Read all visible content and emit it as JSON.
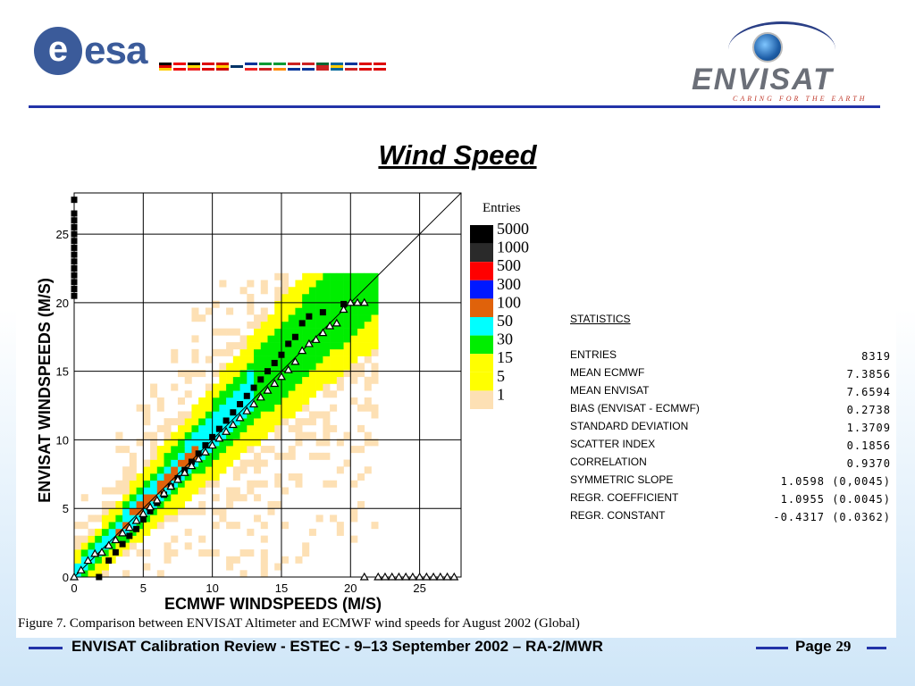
{
  "header": {
    "esa_logo_letter": "e",
    "esa_logo_text": "esa",
    "flags": [
      "de",
      "at",
      "be",
      "dk",
      "es",
      "fi",
      "fr",
      "it",
      "ie",
      "nl",
      "no",
      "pt",
      "se",
      "gb",
      "ch",
      "ca"
    ],
    "envisat_logo_text": "ENVISAT",
    "envisat_tagline": "CARING FOR THE EARTH"
  },
  "page_title": "Wind Speed",
  "figure_caption": "Figure 7. Comparison between ENVISAT Altimeter and ECMWF wind speeds for August 2002 (Global)",
  "chart_data": {
    "type": "heatmap",
    "xlabel": "ECMWF  WINDSPEEDS (M/S)",
    "ylabel": "ENVISAT  WINDSPEEDS (M/S)",
    "xlim": [
      0,
      28
    ],
    "ylim": [
      0,
      28
    ],
    "xticks": [
      "0",
      "5",
      "10",
      "15",
      "20",
      "25"
    ],
    "yticks": [
      "0",
      "5",
      "10",
      "15",
      "20",
      "25"
    ],
    "grid": true,
    "diagonal_line": "y = x",
    "legend_title": "Entries",
    "legend": [
      {
        "label": "5000",
        "color": "#000000"
      },
      {
        "label": "1000",
        "color": "#2a2a2a"
      },
      {
        "label": "500",
        "color": "#ff0000"
      },
      {
        "label": "300",
        "color": "#0018ff"
      },
      {
        "label": "100",
        "color": "#e0620a"
      },
      {
        "label": "50",
        "color": "#00ffff"
      },
      {
        "label": "30",
        "color": "#00ee00"
      },
      {
        "label": "15",
        "color": "#ffff00"
      },
      {
        "label": "5",
        "color": "#ffff00"
      },
      {
        "label": "1",
        "color": "#fde0b4"
      }
    ],
    "series": [
      {
        "name": "mean envisat per ecmwf bin",
        "marker": "square",
        "x": [
          1.8,
          2.5,
          3,
          3.5,
          4,
          4.5,
          5,
          5.5,
          6,
          6.5,
          7,
          7.5,
          8,
          8.5,
          9,
          9.5,
          10,
          10.5,
          11,
          11.5,
          12,
          12.5,
          13,
          13.5,
          14,
          14.5,
          15,
          15.5,
          16,
          16.5,
          17,
          18,
          19.5
        ],
        "y": [
          0,
          1.2,
          1.8,
          2.4,
          3,
          3.5,
          4.2,
          4.8,
          5.4,
          6,
          6.6,
          7.2,
          7.8,
          8.4,
          9,
          9.6,
          10.2,
          10.8,
          11.4,
          12,
          12.6,
          13.2,
          13.8,
          14.4,
          15,
          15.6,
          16.2,
          17,
          17.5,
          18.5,
          19,
          19.3,
          19.9
        ]
      },
      {
        "name": "mean ecmwf per envisat bin",
        "marker": "triangle",
        "x": [
          0,
          0.5,
          1,
          1.5,
          2,
          2.5,
          3,
          3.5,
          4,
          4.5,
          5,
          5.5,
          6,
          6.5,
          7,
          7.5,
          8,
          8.5,
          9,
          9.5,
          10,
          10.5,
          11,
          11.5,
          12,
          12.5,
          13,
          13.5,
          14,
          14.5,
          15,
          15.5,
          16,
          16.5,
          17,
          17.5,
          18,
          18.5,
          19,
          19.5,
          20,
          20.5,
          21
        ],
        "y": [
          0,
          0.5,
          1.2,
          1.7,
          1.8,
          2.3,
          2.7,
          3.2,
          3.6,
          4.1,
          4.6,
          5.1,
          5.6,
          6.1,
          6.6,
          7.1,
          7.6,
          8.1,
          8.6,
          9.1,
          9.6,
          10.1,
          10.6,
          11.1,
          11.6,
          12.1,
          12.6,
          13.1,
          13.6,
          14.1,
          14.6,
          15.1,
          15.7,
          16.5,
          17,
          17.3,
          17.8,
          18.3,
          18.5,
          19.5,
          20,
          20,
          20
        ]
      },
      {
        "name": "zero envisat triangles",
        "marker": "triangle",
        "x": [
          21,
          22,
          22.5,
          23,
          23.5,
          24,
          24.5,
          25,
          25.5,
          26,
          26.5,
          27,
          27.5
        ],
        "y": [
          0,
          0,
          0,
          0,
          0,
          0,
          0,
          0,
          0,
          0,
          0,
          0,
          0
        ]
      },
      {
        "name": "zero ecmwf squares",
        "marker": "square",
        "x": [
          0,
          0,
          0,
          0,
          0,
          0,
          0,
          0,
          0,
          0,
          0,
          0,
          0,
          0
        ],
        "y": [
          20.5,
          21,
          21.5,
          22,
          22.5,
          23,
          23.5,
          24,
          24.5,
          25,
          25.5,
          26,
          26.5,
          27.5
        ]
      }
    ]
  },
  "statistics": {
    "heading": "STATISTICS",
    "rows": [
      {
        "label": "ENTRIES",
        "value": "8319"
      },
      {
        "label": "MEAN ECMWF",
        "value": "7.3856"
      },
      {
        "label": "MEAN ENVISAT",
        "value": "7.6594"
      },
      {
        "label": "BIAS (ENVISAT - ECMWF)",
        "value": "0.2738"
      },
      {
        "label": "STANDARD DEVIATION",
        "value": "1.3709"
      },
      {
        "label": "SCATTER INDEX",
        "value": "0.1856"
      },
      {
        "label": "CORRELATION",
        "value": "0.9370"
      },
      {
        "label": "SYMMETRIC SLOPE",
        "value": "1.0598 (0,0045)"
      },
      {
        "label": "REGR. COEFFICIENT",
        "value": "1.0955 (0.0045)"
      },
      {
        "label": "REGR. CONSTANT",
        "value": "-0.4317 (0.0362)"
      }
    ]
  },
  "footer": {
    "text": "ENVISAT Calibration Review - ESTEC - 9–13 September 2002 – RA-2/MWR",
    "page_label": "Page",
    "page_number": "29"
  }
}
